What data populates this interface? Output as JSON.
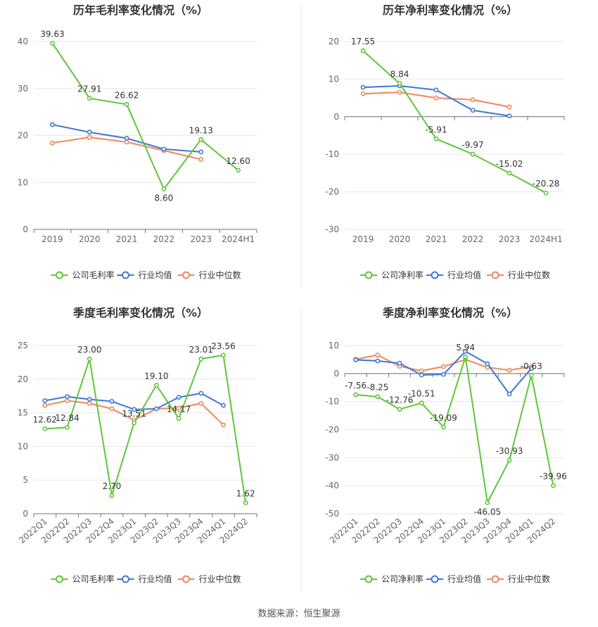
{
  "source": "数据来源：恒生聚源",
  "colors": {
    "company": "#5ec73a",
    "industry_avg": "#3e78d6",
    "industry_median": "#f0875c"
  },
  "chart_data": [
    {
      "type": "line",
      "title": "历年毛利率变化情况（%）",
      "categories": [
        "2019",
        "2020",
        "2021",
        "2022",
        "2023",
        "2024H1"
      ],
      "ylim": [
        0,
        40
      ],
      "yticks": [
        0,
        10,
        20,
        30,
        40
      ],
      "grid": true,
      "legend": "bottom",
      "series": [
        {
          "name": "公司毛利率",
          "values": [
            39.63,
            27.91,
            26.62,
            8.6,
            19.13,
            12.6
          ],
          "labels": [
            "39.63",
            "27.91",
            "26.62",
            "8.60",
            "19.13",
            "12.60"
          ]
        },
        {
          "name": "行业均值",
          "values": [
            22.3,
            20.7,
            19.4,
            17.1,
            16.5,
            null
          ]
        },
        {
          "name": "行业中位数",
          "values": [
            18.4,
            19.6,
            18.6,
            16.8,
            14.9,
            null
          ]
        }
      ]
    },
    {
      "type": "line",
      "title": "历年净利率变化情况（%）",
      "categories": [
        "2019",
        "2020",
        "2021",
        "2022",
        "2023",
        "2024H1"
      ],
      "ylim": [
        -30,
        20
      ],
      "yticks": [
        -30,
        -20,
        -10,
        0,
        10,
        20
      ],
      "grid": true,
      "legend": "bottom",
      "series": [
        {
          "name": "公司净利率",
          "values": [
            17.55,
            8.84,
            -5.91,
            -9.97,
            -15.02,
            -20.28
          ],
          "labels": [
            "17.55",
            "8.84",
            "-5.91",
            "-9.97",
            "-15.02",
            "-20.28"
          ]
        },
        {
          "name": "行业均值",
          "values": [
            7.8,
            8.2,
            7.1,
            1.7,
            0.2,
            null
          ]
        },
        {
          "name": "行业中位数",
          "values": [
            6.1,
            6.5,
            5.0,
            4.5,
            2.6,
            null
          ]
        }
      ]
    },
    {
      "type": "line",
      "title": "季度毛利率变化情况（%）",
      "categories": [
        "2022Q1",
        "2022Q2",
        "2022Q3",
        "2022Q4",
        "2023Q1",
        "2023Q2",
        "2023Q3",
        "2023Q4",
        "2024Q1",
        "2024Q2"
      ],
      "ylim": [
        0,
        25
      ],
      "yticks": [
        0,
        5,
        10,
        15,
        20,
        25
      ],
      "grid": true,
      "legend": "bottom",
      "series": [
        {
          "name": "公司毛利率",
          "values": [
            12.62,
            12.84,
            23.0,
            2.7,
            13.51,
            19.1,
            14.17,
            23.01,
            23.56,
            1.62
          ],
          "labels": [
            "12.62",
            "12.84",
            "23.00",
            "2.70",
            "13.51",
            "19.10",
            "14.17",
            "23.01",
            "23.56",
            "1.62"
          ]
        },
        {
          "name": "行业均值",
          "values": [
            16.8,
            17.4,
            17.0,
            16.7,
            15.5,
            15.6,
            17.3,
            17.9,
            16.1,
            null
          ]
        },
        {
          "name": "行业中位数",
          "values": [
            16.1,
            16.8,
            16.4,
            15.6,
            13.9,
            15.6,
            15.7,
            16.4,
            13.2,
            null
          ]
        }
      ]
    },
    {
      "type": "line",
      "title": "季度净利率变化情况（%）",
      "categories": [
        "2022Q1",
        "2022Q2",
        "2022Q3",
        "2022Q4",
        "2023Q1",
        "2023Q2",
        "2023Q3",
        "2023Q4",
        "2024Q1",
        "2024Q2"
      ],
      "ylim": [
        -50,
        10
      ],
      "yticks": [
        -50,
        -40,
        -30,
        -20,
        -10,
        0,
        10
      ],
      "grid": true,
      "legend": "bottom",
      "series": [
        {
          "name": "公司净利率",
          "values": [
            -7.56,
            -8.25,
            -12.76,
            -10.51,
            -19.09,
            5.94,
            -46.05,
            -30.93,
            -0.63,
            -39.96
          ],
          "labels": [
            "-7.56",
            "-8.25",
            "-12.76",
            "-10.51",
            "-19.09",
            "5.94",
            "-46.05",
            "-30.93",
            "-0.63",
            "-39.96"
          ]
        },
        {
          "name": "行业均值",
          "values": [
            4.9,
            4.5,
            3.7,
            -0.5,
            -0.3,
            7.9,
            3.5,
            -7.3,
            1.8,
            null
          ]
        },
        {
          "name": "行业中位数",
          "values": [
            5.1,
            6.6,
            2.6,
            1.0,
            2.5,
            5.0,
            2.2,
            1.2,
            2.5,
            null
          ]
        }
      ]
    }
  ]
}
